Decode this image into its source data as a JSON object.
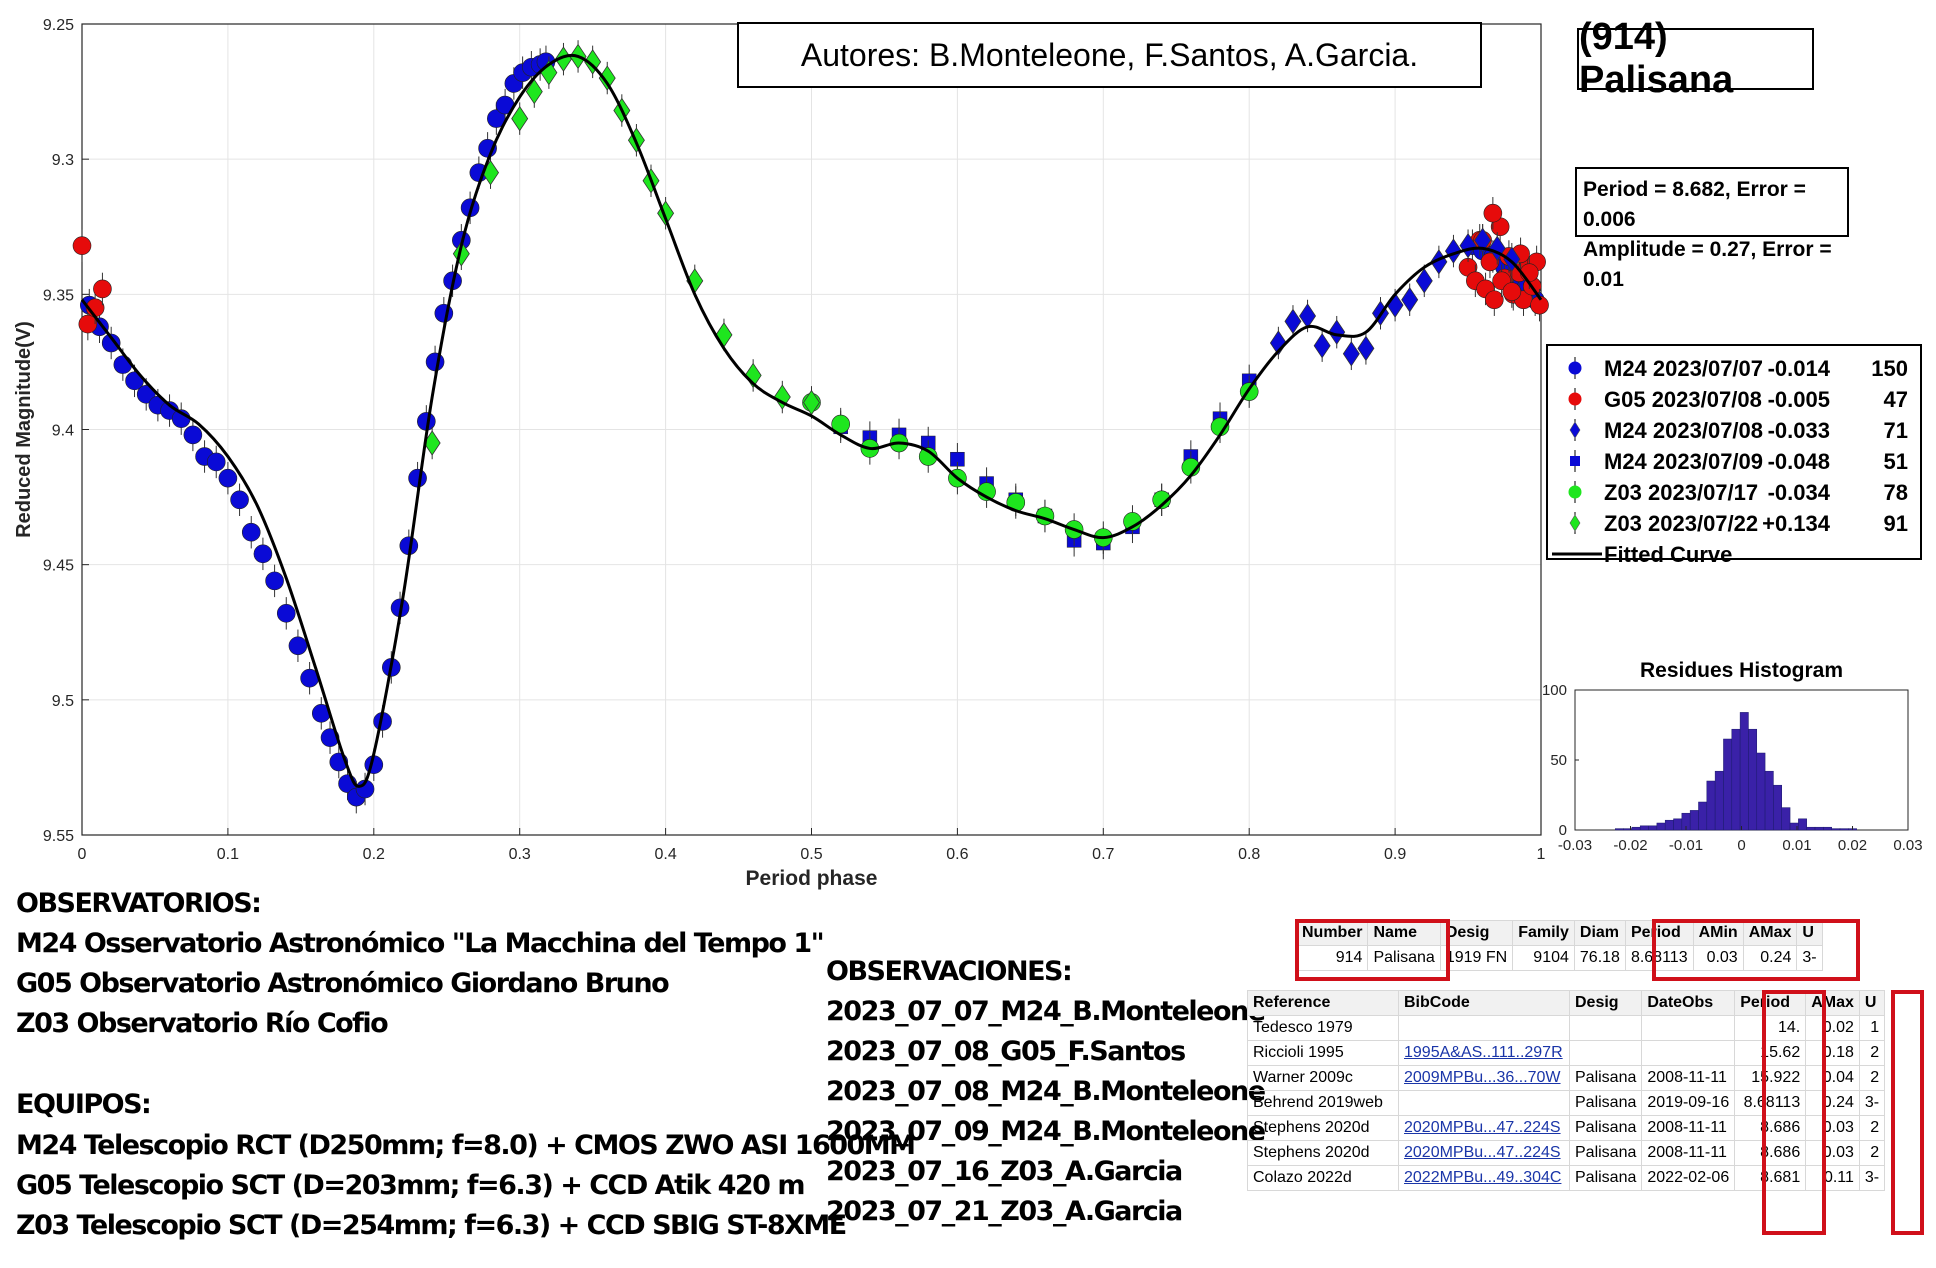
{
  "authors": "Autores: B.Monteleone, F.Santos, A.Garcia.",
  "asteroid": "(914) Palisana",
  "period_lines": [
    "Period =  8.682, Error = 0.006",
    "Amplitude = 0.27, Error = 0.01"
  ],
  "colors": {
    "blue": "#0a0ad6",
    "red": "#e60b0b",
    "green": "#1ee61e",
    "curve": "#000000",
    "hist": "#3a21a8",
    "redbox": "#d0101a"
  },
  "chart_data": [
    {
      "type": "scatter",
      "title": "",
      "xlabel": "Period phase",
      "ylabel": "Reduced Magnitude(V)",
      "xlim": [
        0,
        1
      ],
      "ylim": [
        9.25,
        9.55
      ],
      "y_reversed": true,
      "grid": true,
      "xticks": [
        "0",
        "0.1",
        "0.2",
        "0.3",
        "0.4",
        "0.5",
        "0.6",
        "0.7",
        "0.8",
        "0.9",
        "1"
      ],
      "yticks": [
        "9.25",
        "9.3",
        "9.35",
        "9.4",
        "9.45",
        "9.5",
        "9.55"
      ],
      "legend_position": "right",
      "fitted_curve": {
        "name": "Fitted Curve",
        "x": [
          0,
          0.02,
          0.04,
          0.06,
          0.08,
          0.1,
          0.12,
          0.14,
          0.16,
          0.18,
          0.19,
          0.2,
          0.22,
          0.24,
          0.26,
          0.28,
          0.3,
          0.32,
          0.34,
          0.36,
          0.38,
          0.4,
          0.42,
          0.44,
          0.46,
          0.48,
          0.5,
          0.52,
          0.54,
          0.56,
          0.58,
          0.6,
          0.62,
          0.64,
          0.66,
          0.68,
          0.7,
          0.72,
          0.74,
          0.76,
          0.78,
          0.8,
          0.82,
          0.84,
          0.86,
          0.88,
          0.9,
          0.92,
          0.94,
          0.96,
          0.98,
          1.0
        ],
        "y": [
          9.352,
          9.366,
          9.38,
          9.391,
          9.398,
          9.41,
          9.428,
          9.455,
          9.488,
          9.522,
          9.532,
          9.52,
          9.462,
          9.388,
          9.332,
          9.298,
          9.277,
          9.265,
          9.262,
          9.272,
          9.294,
          9.322,
          9.35,
          9.37,
          9.383,
          9.39,
          9.395,
          9.402,
          9.407,
          9.405,
          9.408,
          9.418,
          9.425,
          9.43,
          9.433,
          9.437,
          9.44,
          9.436,
          9.428,
          9.417,
          9.402,
          9.385,
          9.371,
          9.362,
          9.365,
          9.364,
          9.35,
          9.34,
          9.335,
          9.333,
          9.338,
          9.352
        ]
      },
      "series": [
        {
          "name": "M24 2023/07/07",
          "rms": "-0.014",
          "n": "150",
          "color": "#0a0ad6",
          "marker": "circle",
          "x": [
            0.005,
            0.012,
            0.02,
            0.028,
            0.036,
            0.044,
            0.052,
            0.06,
            0.068,
            0.076,
            0.084,
            0.092,
            0.1,
            0.108,
            0.116,
            0.124,
            0.132,
            0.14,
            0.148,
            0.156,
            0.164,
            0.17,
            0.176,
            0.182,
            0.188,
            0.194,
            0.2,
            0.206,
            0.212,
            0.218,
            0.224,
            0.23,
            0.236,
            0.242,
            0.248,
            0.254,
            0.26,
            0.266,
            0.272,
            0.278,
            0.284,
            0.29,
            0.296,
            0.302,
            0.308,
            0.314,
            0.318,
            0.953,
            0.96,
            0.967,
            0.975,
            0.983,
            0.99,
            0.996
          ],
          "y": [
            9.354,
            9.362,
            9.368,
            9.376,
            9.382,
            9.387,
            9.391,
            9.393,
            9.396,
            9.402,
            9.41,
            9.412,
            9.418,
            9.426,
            9.438,
            9.446,
            9.456,
            9.468,
            9.48,
            9.492,
            9.505,
            9.514,
            9.523,
            9.531,
            9.536,
            9.533,
            9.524,
            9.508,
            9.488,
            9.466,
            9.443,
            9.418,
            9.397,
            9.375,
            9.357,
            9.345,
            9.33,
            9.318,
            9.305,
            9.296,
            9.285,
            9.28,
            9.272,
            9.268,
            9.266,
            9.265,
            9.264,
            9.332,
            9.334,
            9.336,
            9.34,
            9.344,
            9.347,
            9.352
          ]
        },
        {
          "name": "G05 2023/07/08",
          "rms": "-0.005",
          "n": "47",
          "color": "#e60b0b",
          "marker": "circle",
          "x": [
            0.0,
            0.004,
            0.009,
            0.014,
            0.95,
            0.955,
            0.958,
            0.962,
            0.965,
            0.968,
            0.972,
            0.975,
            0.978,
            0.981,
            0.985,
            0.988,
            0.991,
            0.994,
            0.997,
            0.999,
            0.96,
            0.967,
            0.973,
            0.98,
            0.986,
            0.992
          ],
          "y": [
            9.332,
            9.361,
            9.355,
            9.348,
            9.34,
            9.345,
            9.33,
            9.348,
            9.338,
            9.352,
            9.325,
            9.344,
            9.336,
            9.35,
            9.342,
            9.352,
            9.34,
            9.347,
            9.338,
            9.354,
            9.33,
            9.32,
            9.345,
            9.349,
            9.335,
            9.342
          ]
        },
        {
          "name": "M24 2023/07/08",
          "rms": "-0.033",
          "n": "71",
          "color": "#0a0ad6",
          "marker": "diamond",
          "x": [
            0.82,
            0.83,
            0.84,
            0.85,
            0.86,
            0.87,
            0.88,
            0.89,
            0.9,
            0.91,
            0.92,
            0.93,
            0.94,
            0.95,
            0.96,
            0.97,
            0.98
          ],
          "y": [
            9.368,
            9.36,
            9.358,
            9.369,
            9.364,
            9.372,
            9.37,
            9.357,
            9.354,
            9.352,
            9.345,
            9.338,
            9.334,
            9.332,
            9.33,
            9.333,
            9.337
          ]
        },
        {
          "name": "M24 2023/07/09",
          "rms": "-0.048",
          "n": "51",
          "color": "#0a0ad6",
          "marker": "square",
          "x": [
            0.52,
            0.54,
            0.56,
            0.58,
            0.6,
            0.62,
            0.64,
            0.66,
            0.68,
            0.7,
            0.72,
            0.74,
            0.76,
            0.78,
            0.8
          ],
          "y": [
            9.399,
            9.403,
            9.402,
            9.405,
            9.411,
            9.42,
            9.426,
            9.432,
            9.441,
            9.442,
            9.436,
            9.426,
            9.41,
            9.396,
            9.382
          ]
        },
        {
          "name": "Z03 2023/07/17",
          "rms": "-0.034",
          "n": "78",
          "color": "#1ee61e",
          "marker": "circle",
          "x": [
            0.5,
            0.52,
            0.54,
            0.56,
            0.58,
            0.6,
            0.62,
            0.64,
            0.66,
            0.68,
            0.7,
            0.72,
            0.74,
            0.76,
            0.78,
            0.8
          ],
          "y": [
            9.39,
            9.398,
            9.407,
            9.405,
            9.41,
            9.418,
            9.423,
            9.427,
            9.432,
            9.437,
            9.44,
            9.434,
            9.426,
            9.414,
            9.399,
            9.386
          ]
        },
        {
          "name": "Z03 2023/07/22",
          "rms": "+0.134",
          "n": "91",
          "color": "#1ee61e",
          "marker": "diamond",
          "x": [
            0.24,
            0.26,
            0.28,
            0.3,
            0.31,
            0.32,
            0.33,
            0.34,
            0.35,
            0.36,
            0.37,
            0.38,
            0.39,
            0.4,
            0.42,
            0.44,
            0.46,
            0.48,
            0.5
          ],
          "y": [
            9.405,
            9.335,
            9.305,
            9.285,
            9.275,
            9.268,
            9.263,
            9.262,
            9.264,
            9.27,
            9.282,
            9.293,
            9.308,
            9.32,
            9.345,
            9.365,
            9.38,
            9.388,
            9.39
          ]
        }
      ],
      "fitted_label": "Fitted Curve"
    },
    {
      "type": "bar",
      "title": "Residues Histogram",
      "xlim": [
        -0.03,
        0.03
      ],
      "ylim": [
        0,
        100
      ],
      "xticks": [
        "-0.03",
        "-0.02",
        "-0.01",
        "0",
        "0.01",
        "0.02",
        "0.03"
      ],
      "yticks": [
        "0",
        "50",
        "100"
      ],
      "bin_centers": [
        -0.022,
        -0.0205,
        -0.019,
        -0.0175,
        -0.016,
        -0.0145,
        -0.013,
        -0.0115,
        -0.01,
        -0.0085,
        -0.007,
        -0.0055,
        -0.004,
        -0.0025,
        -0.001,
        0.0005,
        0.002,
        0.0035,
        0.005,
        0.0065,
        0.008,
        0.0095,
        0.011,
        0.0125,
        0.014,
        0.0155,
        0.017,
        0.0185,
        0.02
      ],
      "values": [
        1,
        1,
        2,
        3,
        3,
        5,
        7,
        8,
        12,
        14,
        20,
        35,
        42,
        65,
        72,
        84,
        72,
        55,
        42,
        32,
        16,
        5,
        8,
        2,
        2,
        2,
        1,
        1,
        1
      ]
    }
  ],
  "observatorios_title": "OBSERVATORIOS:",
  "observatorios": [
    "M24 Osservatorio Astronómico \"La Macchina del Tempo 1\"",
    "G05 Observatorio Astronómico Giordano Bruno",
    "Z03 Observatorio Río Cofio"
  ],
  "equipos_title": "EQUIPOS:",
  "equipos": [
    "M24 Telescopio RCT (D250mm; f=8.0) + CMOS ZWO ASI 1600MM",
    "G05 Telescopio SCT (D=203mm; f=6.3) + CCD Atik 420 m",
    "Z03 Telescopio SCT (D=254mm; f=6.3) + CCD SBIG ST-8XME"
  ],
  "observaciones_title": "OBSERVACIONES:",
  "observaciones": [
    "2023_07_07_M24_B.Monteleone",
    "2023_07_08_G05_F.Santos",
    "2023_07_08_M24_B.Monteleone",
    "2023_07_09_M24_B.Monteleone",
    "2023_07_16_Z03_A.Garcia",
    "2023_07_21_Z03_A.Garcia"
  ],
  "table1": {
    "headers": [
      "Number",
      "Name",
      "Desig",
      "Family",
      "Diam",
      "Period",
      "AMin",
      "AMax",
      "U"
    ],
    "row": [
      "914",
      "Palisana",
      "1919 FN",
      "9104",
      "76.18",
      "8.68113",
      "0.03",
      "0.24",
      "3-"
    ]
  },
  "table2": {
    "headers": [
      "Reference",
      "BibCode",
      "Desig",
      "DateObs",
      "Period",
      "AMax",
      "U"
    ],
    "rows": [
      [
        "Tedesco 1979",
        "",
        "",
        "",
        "14.",
        "0.02",
        "1"
      ],
      [
        "Riccioli 1995",
        "1995A&AS..111..297R",
        "",
        "",
        "15.62",
        "0.18",
        "2"
      ],
      [
        "Warner 2009c",
        "2009MPBu...36...70W",
        "Palisana",
        "2008-11-11",
        "15.922",
        "0.04",
        "2"
      ],
      [
        "Behrend 2019web",
        "",
        "Palisana",
        "2019-09-16",
        "8.68113",
        "0.24",
        "3-"
      ],
      [
        "Stephens 2020d",
        "2020MPBu...47..224S",
        "Palisana",
        "2008-11-11",
        "8.686",
        "0.03",
        "2"
      ],
      [
        "Stephens 2020d",
        "2020MPBu...47..224S",
        "Palisana",
        "2008-11-11",
        "8.686",
        "0.03",
        "2"
      ],
      [
        "Colazo 2022d",
        "2022MPBu...49..304C",
        "Palisana",
        "2022-02-06",
        "8.681",
        "0.11",
        "3-"
      ]
    ]
  }
}
